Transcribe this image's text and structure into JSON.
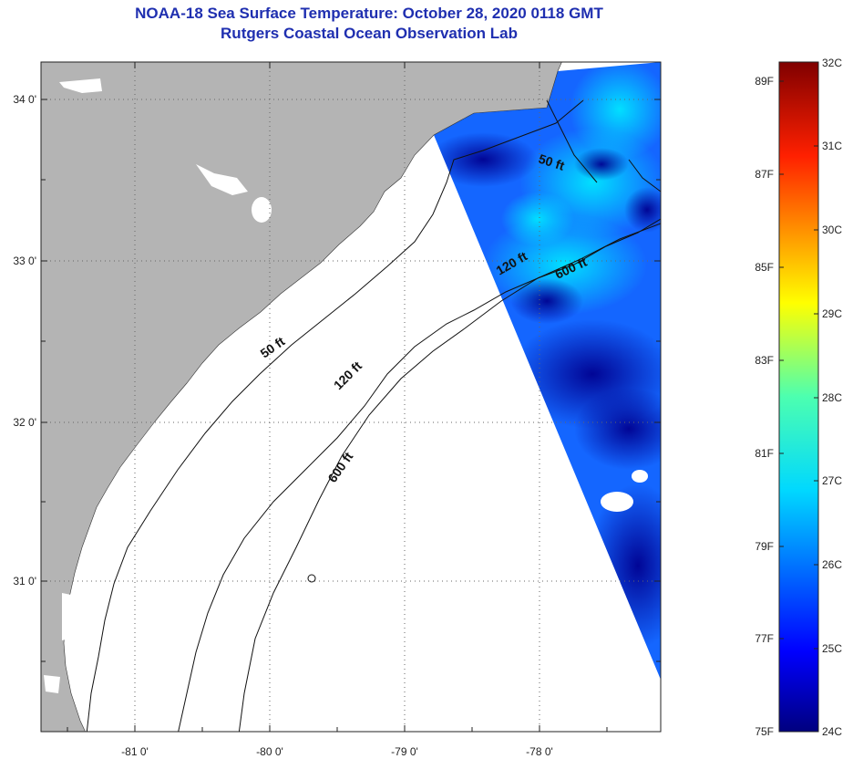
{
  "title_line1": "NOAA-18 Sea Surface Temperature:  October 28, 2020 0118 GMT",
  "title_line2": "Rutgers Coastal Ocean Observation Lab",
  "colors": {
    "land": "#b4b4b4",
    "ocean_no_data": "#ffffff",
    "sst_cold": "#00008c",
    "sst_mid": "#1a7fff",
    "sst_warm": "#00e6ff"
  },
  "map": {
    "lon_labels": [
      "-81 0'",
      "-80 0'",
      "-79 0'",
      "-78 0'"
    ],
    "lat_labels": [
      "34 0'",
      "33 0'",
      "32 0'",
      "31 0'"
    ],
    "depth_labels": [
      {
        "id": "d50a",
        "text": "50 ft"
      },
      {
        "id": "d120a",
        "text": "120 ft"
      },
      {
        "id": "d600a",
        "text": "600 ft"
      },
      {
        "id": "d50b",
        "text": "50 ft"
      },
      {
        "id": "d120b",
        "text": "120 ft"
      },
      {
        "id": "d600b",
        "text": "600 ft"
      }
    ]
  },
  "colorbar": {
    "fahrenheit": [
      "89F",
      "87F",
      "85F",
      "83F",
      "81F",
      "79F",
      "77F",
      "75F"
    ],
    "celsius": [
      "32C",
      "31C",
      "30C",
      "29C",
      "28C",
      "27C",
      "26C",
      "25C",
      "24C"
    ]
  }
}
